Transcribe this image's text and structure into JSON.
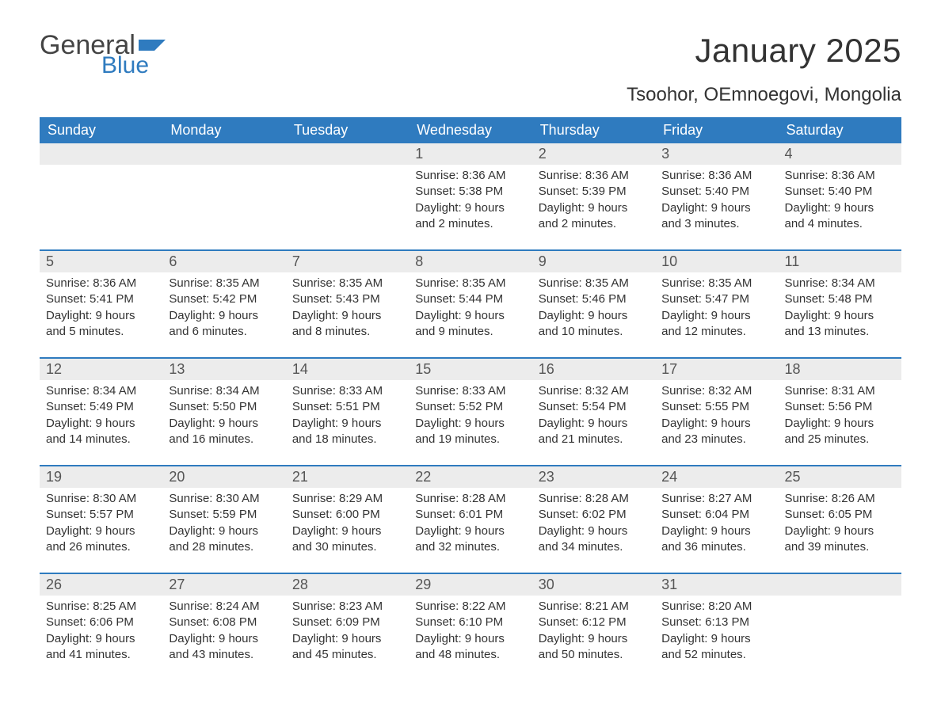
{
  "brand": {
    "general": "General",
    "blue": "Blue",
    "flag_color": "#2f7bbf"
  },
  "title": "January 2025",
  "location": "Tsoohor, OEmnoegovi, Mongolia",
  "colors": {
    "header_bg": "#2f7bbf",
    "header_text": "#ffffff",
    "daynum_bg": "#ececec",
    "daynum_text": "#555555",
    "body_text": "#333333",
    "week_border": "#2f7bbf",
    "page_bg": "#ffffff"
  },
  "days_of_week": [
    "Sunday",
    "Monday",
    "Tuesday",
    "Wednesday",
    "Thursday",
    "Friday",
    "Saturday"
  ],
  "calendar": {
    "type": "table",
    "weeks": [
      [
        {
          "n": "",
          "sunrise": "",
          "sunset": "",
          "daylight": ""
        },
        {
          "n": "",
          "sunrise": "",
          "sunset": "",
          "daylight": ""
        },
        {
          "n": "",
          "sunrise": "",
          "sunset": "",
          "daylight": ""
        },
        {
          "n": "1",
          "sunrise": "Sunrise: 8:36 AM",
          "sunset": "Sunset: 5:38 PM",
          "daylight": "Daylight: 9 hours and 2 minutes."
        },
        {
          "n": "2",
          "sunrise": "Sunrise: 8:36 AM",
          "sunset": "Sunset: 5:39 PM",
          "daylight": "Daylight: 9 hours and 2 minutes."
        },
        {
          "n": "3",
          "sunrise": "Sunrise: 8:36 AM",
          "sunset": "Sunset: 5:40 PM",
          "daylight": "Daylight: 9 hours and 3 minutes."
        },
        {
          "n": "4",
          "sunrise": "Sunrise: 8:36 AM",
          "sunset": "Sunset: 5:40 PM",
          "daylight": "Daylight: 9 hours and 4 minutes."
        }
      ],
      [
        {
          "n": "5",
          "sunrise": "Sunrise: 8:36 AM",
          "sunset": "Sunset: 5:41 PM",
          "daylight": "Daylight: 9 hours and 5 minutes."
        },
        {
          "n": "6",
          "sunrise": "Sunrise: 8:35 AM",
          "sunset": "Sunset: 5:42 PM",
          "daylight": "Daylight: 9 hours and 6 minutes."
        },
        {
          "n": "7",
          "sunrise": "Sunrise: 8:35 AM",
          "sunset": "Sunset: 5:43 PM",
          "daylight": "Daylight: 9 hours and 8 minutes."
        },
        {
          "n": "8",
          "sunrise": "Sunrise: 8:35 AM",
          "sunset": "Sunset: 5:44 PM",
          "daylight": "Daylight: 9 hours and 9 minutes."
        },
        {
          "n": "9",
          "sunrise": "Sunrise: 8:35 AM",
          "sunset": "Sunset: 5:46 PM",
          "daylight": "Daylight: 9 hours and 10 minutes."
        },
        {
          "n": "10",
          "sunrise": "Sunrise: 8:35 AM",
          "sunset": "Sunset: 5:47 PM",
          "daylight": "Daylight: 9 hours and 12 minutes."
        },
        {
          "n": "11",
          "sunrise": "Sunrise: 8:34 AM",
          "sunset": "Sunset: 5:48 PM",
          "daylight": "Daylight: 9 hours and 13 minutes."
        }
      ],
      [
        {
          "n": "12",
          "sunrise": "Sunrise: 8:34 AM",
          "sunset": "Sunset: 5:49 PM",
          "daylight": "Daylight: 9 hours and 14 minutes."
        },
        {
          "n": "13",
          "sunrise": "Sunrise: 8:34 AM",
          "sunset": "Sunset: 5:50 PM",
          "daylight": "Daylight: 9 hours and 16 minutes."
        },
        {
          "n": "14",
          "sunrise": "Sunrise: 8:33 AM",
          "sunset": "Sunset: 5:51 PM",
          "daylight": "Daylight: 9 hours and 18 minutes."
        },
        {
          "n": "15",
          "sunrise": "Sunrise: 8:33 AM",
          "sunset": "Sunset: 5:52 PM",
          "daylight": "Daylight: 9 hours and 19 minutes."
        },
        {
          "n": "16",
          "sunrise": "Sunrise: 8:32 AM",
          "sunset": "Sunset: 5:54 PM",
          "daylight": "Daylight: 9 hours and 21 minutes."
        },
        {
          "n": "17",
          "sunrise": "Sunrise: 8:32 AM",
          "sunset": "Sunset: 5:55 PM",
          "daylight": "Daylight: 9 hours and 23 minutes."
        },
        {
          "n": "18",
          "sunrise": "Sunrise: 8:31 AM",
          "sunset": "Sunset: 5:56 PM",
          "daylight": "Daylight: 9 hours and 25 minutes."
        }
      ],
      [
        {
          "n": "19",
          "sunrise": "Sunrise: 8:30 AM",
          "sunset": "Sunset: 5:57 PM",
          "daylight": "Daylight: 9 hours and 26 minutes."
        },
        {
          "n": "20",
          "sunrise": "Sunrise: 8:30 AM",
          "sunset": "Sunset: 5:59 PM",
          "daylight": "Daylight: 9 hours and 28 minutes."
        },
        {
          "n": "21",
          "sunrise": "Sunrise: 8:29 AM",
          "sunset": "Sunset: 6:00 PM",
          "daylight": "Daylight: 9 hours and 30 minutes."
        },
        {
          "n": "22",
          "sunrise": "Sunrise: 8:28 AM",
          "sunset": "Sunset: 6:01 PM",
          "daylight": "Daylight: 9 hours and 32 minutes."
        },
        {
          "n": "23",
          "sunrise": "Sunrise: 8:28 AM",
          "sunset": "Sunset: 6:02 PM",
          "daylight": "Daylight: 9 hours and 34 minutes."
        },
        {
          "n": "24",
          "sunrise": "Sunrise: 8:27 AM",
          "sunset": "Sunset: 6:04 PM",
          "daylight": "Daylight: 9 hours and 36 minutes."
        },
        {
          "n": "25",
          "sunrise": "Sunrise: 8:26 AM",
          "sunset": "Sunset: 6:05 PM",
          "daylight": "Daylight: 9 hours and 39 minutes."
        }
      ],
      [
        {
          "n": "26",
          "sunrise": "Sunrise: 8:25 AM",
          "sunset": "Sunset: 6:06 PM",
          "daylight": "Daylight: 9 hours and 41 minutes."
        },
        {
          "n": "27",
          "sunrise": "Sunrise: 8:24 AM",
          "sunset": "Sunset: 6:08 PM",
          "daylight": "Daylight: 9 hours and 43 minutes."
        },
        {
          "n": "28",
          "sunrise": "Sunrise: 8:23 AM",
          "sunset": "Sunset: 6:09 PM",
          "daylight": "Daylight: 9 hours and 45 minutes."
        },
        {
          "n": "29",
          "sunrise": "Sunrise: 8:22 AM",
          "sunset": "Sunset: 6:10 PM",
          "daylight": "Daylight: 9 hours and 48 minutes."
        },
        {
          "n": "30",
          "sunrise": "Sunrise: 8:21 AM",
          "sunset": "Sunset: 6:12 PM",
          "daylight": "Daylight: 9 hours and 50 minutes."
        },
        {
          "n": "31",
          "sunrise": "Sunrise: 8:20 AM",
          "sunset": "Sunset: 6:13 PM",
          "daylight": "Daylight: 9 hours and 52 minutes."
        },
        {
          "n": "",
          "sunrise": "",
          "sunset": "",
          "daylight": ""
        }
      ]
    ]
  }
}
